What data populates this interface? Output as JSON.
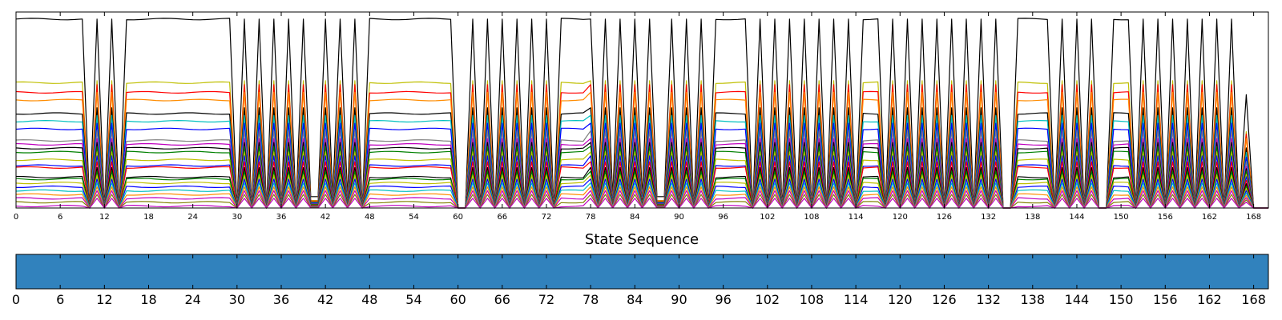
{
  "chart_data": [
    {
      "type": "line",
      "title": "",
      "xlabel": "",
      "ylabel": "",
      "xlim": [
        0,
        170
      ],
      "ylim": [
        0,
        1
      ],
      "xticks": [
        "0",
        "6",
        "12",
        "18",
        "24",
        "30",
        "36",
        "42",
        "48",
        "54",
        "60",
        "66",
        "72",
        "78",
        "84",
        "90",
        "96",
        "102",
        "108",
        "114",
        "120",
        "126",
        "132",
        "138",
        "144",
        "150",
        "156",
        "162",
        "168"
      ],
      "grid": false,
      "legend": "none",
      "active_segments": [
        [
          0,
          9
        ],
        [
          15,
          29
        ],
        [
          48,
          59
        ],
        [
          74,
          77
        ],
        [
          95,
          99
        ],
        [
          115,
          117
        ],
        [
          136,
          140
        ],
        [
          149,
          151
        ]
      ],
      "peaks": [
        11,
        13,
        31,
        33,
        35,
        37,
        39,
        42,
        44,
        46,
        59,
        62,
        64,
        66,
        68,
        70,
        72,
        78,
        80,
        82,
        84,
        86,
        89,
        91,
        93,
        101,
        103,
        105,
        107,
        109,
        111,
        113,
        119,
        121,
        123,
        125,
        127,
        129,
        131,
        133,
        142,
        144,
        146,
        153,
        155,
        157,
        159,
        161,
        163,
        165
      ],
      "small_peak": {
        "x": 167,
        "height": 0.6
      },
      "dip_segments": [
        [
          39,
          46
        ],
        [
          79,
          88
        ]
      ],
      "series": [
        {
          "color": "#000000",
          "level": 0.98,
          "peak": 0.98
        },
        {
          "color": "#bfbf00",
          "level": 0.65,
          "peak": 0.66
        },
        {
          "color": "#ff0000",
          "level": 0.6,
          "peak": 0.64
        },
        {
          "color": "#ff8c00",
          "level": 0.56,
          "peak": 0.6
        },
        {
          "color": "#000000",
          "level": 0.49,
          "peak": 0.52
        },
        {
          "color": "#00bfbf",
          "level": 0.45,
          "peak": 0.48
        },
        {
          "color": "#0000ff",
          "level": 0.41,
          "peak": 0.44
        },
        {
          "color": "#808080",
          "level": 0.35,
          "peak": 0.4
        },
        {
          "color": "#bf00bf",
          "level": 0.33,
          "peak": 0.36
        },
        {
          "color": "#000000",
          "level": 0.31,
          "peak": 0.34
        },
        {
          "color": "#008000",
          "level": 0.29,
          "peak": 0.32
        },
        {
          "color": "#bfbf00",
          "level": 0.25,
          "peak": 0.29
        },
        {
          "color": "#0000ff",
          "level": 0.22,
          "peak": 0.27
        },
        {
          "color": "#ff0000",
          "level": 0.21,
          "peak": 0.24
        },
        {
          "color": "#000000",
          "level": 0.16,
          "peak": 0.21
        },
        {
          "color": "#008000",
          "level": 0.15,
          "peak": 0.19
        },
        {
          "color": "#bfbf00",
          "level": 0.13,
          "peak": 0.17
        },
        {
          "color": "#0000ff",
          "level": 0.11,
          "peak": 0.15
        },
        {
          "color": "#00bfbf",
          "level": 0.09,
          "peak": 0.13
        },
        {
          "color": "#ff8c00",
          "level": 0.07,
          "peak": 0.11
        },
        {
          "color": "#bf00bf",
          "level": 0.05,
          "peak": 0.09
        },
        {
          "color": "#808000",
          "level": 0.03,
          "peak": 0.07
        },
        {
          "color": "#bf00bf",
          "level": 0.01,
          "peak": 0.05
        }
      ]
    },
    {
      "type": "heatmap",
      "title": "State Sequence",
      "xlim": [
        0,
        170
      ],
      "xticks": [
        "0",
        "6",
        "12",
        "18",
        "24",
        "30",
        "36",
        "42",
        "48",
        "54",
        "60",
        "66",
        "72",
        "78",
        "84",
        "90",
        "96",
        "102",
        "108",
        "114",
        "120",
        "126",
        "132",
        "138",
        "144",
        "150",
        "156",
        "162",
        "168"
      ],
      "states": [
        {
          "start": 0,
          "end": 170,
          "color": "#3182bd"
        }
      ]
    }
  ]
}
